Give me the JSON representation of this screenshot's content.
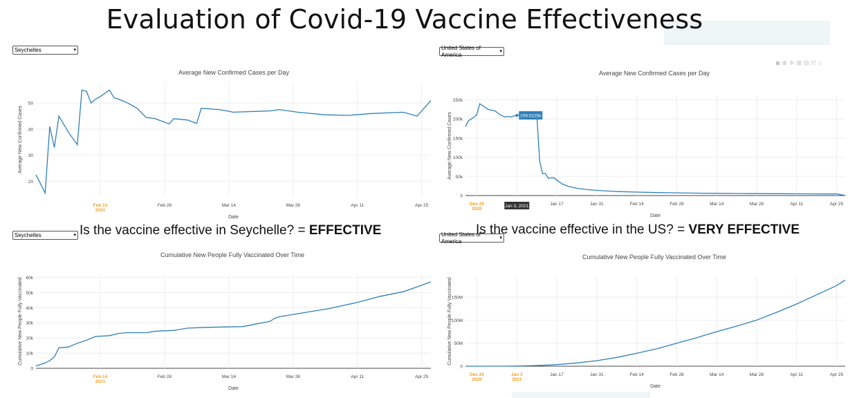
{
  "title": "Evaluation of Covid-19 Vaccine Effectiveness",
  "panels": {
    "top_left": {
      "selected_country": "Seychelles",
      "question_text": "Is the vaccine effective in Seychelle? = ",
      "answer": "EFFECTIVE"
    },
    "top_right": {
      "selected_country": "United States of America",
      "question_text": "Is the vaccine effective in the US? = ",
      "answer": "VERY EFFECTIVE",
      "tooltip_value": "209.5225k",
      "tooltip_date": "Jan 3, 2021"
    },
    "bottom_left": {
      "selected_country": "Seychelles"
    },
    "bottom_right": {
      "selected_country": "United States of America"
    }
  },
  "chart_data": [
    {
      "id": "sey_cases",
      "type": "line",
      "title": "Average New Confirmed Cases per Day",
      "xlabel": "Date",
      "ylabel": "Average New Confirmed Cases",
      "x_start": "2021-01-31",
      "x_end": "2021-04-27",
      "xlim": [
        "2021-01-31",
        "2021-04-27"
      ],
      "ylim": [
        14,
        58
      ],
      "yticks": [
        20,
        30,
        40,
        50
      ],
      "xticks": [
        {
          "date": "2021-02-14",
          "label": "Feb 14",
          "sub": "2021",
          "highlight": true
        },
        {
          "date": "2021-02-28",
          "label": "Feb 28"
        },
        {
          "date": "2021-03-14",
          "label": "Mar 14"
        },
        {
          "date": "2021-03-28",
          "label": "Mar 28"
        },
        {
          "date": "2021-04-11",
          "label": "Apr 11"
        },
        {
          "date": "2021-04-25",
          "label": "Apr 25"
        }
      ],
      "x": [
        "2021-01-31",
        "2021-02-02",
        "2021-02-03",
        "2021-02-04",
        "2021-02-05",
        "2021-02-07",
        "2021-02-09",
        "2021-02-10",
        "2021-02-11",
        "2021-02-12",
        "2021-02-13",
        "2021-02-14",
        "2021-02-16",
        "2021-02-17",
        "2021-02-18",
        "2021-02-20",
        "2021-02-22",
        "2021-02-24",
        "2021-02-26",
        "2021-03-01",
        "2021-03-02",
        "2021-03-05",
        "2021-03-07",
        "2021-03-08",
        "2021-03-12",
        "2021-03-15",
        "2021-03-23",
        "2021-03-25",
        "2021-03-29",
        "2021-04-04",
        "2021-04-09",
        "2021-04-14",
        "2021-04-21",
        "2021-04-24",
        "2021-04-27"
      ],
      "series": [
        {
          "values": [
            22.5,
            15.5,
            41,
            33,
            45,
            39,
            34,
            55,
            54.5,
            50,
            51.5,
            52.5,
            55,
            52,
            51.5,
            50,
            48,
            44.5,
            44,
            42,
            44,
            43.5,
            42.2,
            48,
            47.5,
            46.5,
            47,
            47.5,
            46.5,
            45.5,
            45.3,
            46,
            46.5,
            45,
            51
          ]
        }
      ]
    },
    {
      "id": "us_cases",
      "type": "line",
      "title": "Average New Confirmed Cases per Day",
      "xlabel": "Date",
      "ylabel": "Average New Confirmed Cases",
      "x_start": "2020-12-16",
      "x_end": "2021-04-28",
      "xlim": [
        "2020-12-16",
        "2021-04-28"
      ],
      "ylim": [
        0,
        260000
      ],
      "yticks": [
        {
          "v": 0,
          "t": "0"
        },
        {
          "v": 50000,
          "t": "50k"
        },
        {
          "v": 100000,
          "t": "100k"
        },
        {
          "v": 150000,
          "t": "150k"
        },
        {
          "v": 200000,
          "t": "200k"
        },
        {
          "v": 250000,
          "t": "250k"
        }
      ],
      "xticks": [
        {
          "date": "2020-12-20",
          "label": "Dec 20",
          "sub": "2020",
          "highlight": true
        },
        {
          "date": "2021-01-03",
          "label": "Jan 3, 2021",
          "box": true
        },
        {
          "date": "2021-01-17",
          "label": "Jan 17"
        },
        {
          "date": "2021-01-31",
          "label": "Jan 31"
        },
        {
          "date": "2021-02-14",
          "label": "Feb 14"
        },
        {
          "date": "2021-02-28",
          "label": "Feb 28"
        },
        {
          "date": "2021-03-14",
          "label": "Mar 14"
        },
        {
          "date": "2021-03-28",
          "label": "Mar 28"
        },
        {
          "date": "2021-04-11",
          "label": "Apr 11"
        },
        {
          "date": "2021-04-25",
          "label": "Apr 25"
        }
      ],
      "x": [
        "2020-12-16",
        "2020-12-17",
        "2020-12-18",
        "2020-12-19",
        "2020-12-20",
        "2020-12-21",
        "2020-12-22",
        "2020-12-23",
        "2020-12-24",
        "2020-12-25",
        "2020-12-26",
        "2020-12-27",
        "2020-12-28",
        "2020-12-29",
        "2020-12-30",
        "2020-12-31",
        "2021-01-01",
        "2021-01-02",
        "2021-01-03",
        "2021-01-04",
        "2021-01-05",
        "2021-01-06",
        "2021-01-07",
        "2021-01-08",
        "2021-01-09",
        "2021-01-10",
        "2021-01-11",
        "2021-01-12",
        "2021-01-13",
        "2021-01-14",
        "2021-01-15",
        "2021-01-16",
        "2021-01-17",
        "2021-01-19",
        "2021-01-21",
        "2021-01-24",
        "2021-01-27",
        "2021-01-31",
        "2021-02-07",
        "2021-02-14",
        "2021-02-21",
        "2021-02-28",
        "2021-03-07",
        "2021-03-14",
        "2021-03-21",
        "2021-03-28",
        "2021-04-04",
        "2021-04-11",
        "2021-04-18",
        "2021-04-25",
        "2021-04-26",
        "2021-04-27",
        "2021-04-28"
      ],
      "series": [
        {
          "values": [
            180000,
            195000,
            200000,
            205000,
            212000,
            240000,
            235000,
            230000,
            225000,
            223000,
            222000,
            218000,
            212000,
            208000,
            205000,
            207000,
            205000,
            208000,
            209522,
            211000,
            210000,
            208000,
            212000,
            210000,
            208000,
            209000,
            90000,
            57000,
            58000,
            45000,
            46000,
            46500,
            40000,
            30000,
            24000,
            19000,
            16000,
            13500,
            10500,
            9000,
            7800,
            7000,
            6300,
            5800,
            5400,
            5000,
            4800,
            4600,
            4400,
            4200,
            3000,
            1500,
            500
          ]
        }
      ]
    },
    {
      "id": "sey_vax",
      "type": "line",
      "title": "Cumulative New People Fully Vaccinated Over Time",
      "xlabel": "Date",
      "ylabel": "Cumulative New People Fully Vaccinated",
      "x_start": "2021-01-31",
      "x_end": "2021-04-27",
      "xlim": [
        "2021-01-31",
        "2021-04-27"
      ],
      "ylim": [
        0,
        62000
      ],
      "yticks": [
        {
          "v": 0,
          "t": "0"
        },
        {
          "v": 10000,
          "t": "10k"
        },
        {
          "v": 20000,
          "t": "20k"
        },
        {
          "v": 30000,
          "t": "30k"
        },
        {
          "v": 40000,
          "t": "40k"
        },
        {
          "v": 50000,
          "t": "50k"
        },
        {
          "v": 60000,
          "t": "60k"
        }
      ],
      "xticks": [
        {
          "date": "2021-02-14",
          "label": "Feb 14",
          "sub": "2021",
          "highlight": true
        },
        {
          "date": "2021-02-28",
          "label": "Feb 28"
        },
        {
          "date": "2021-03-14",
          "label": "Mar 14"
        },
        {
          "date": "2021-03-28",
          "label": "Mar 28"
        },
        {
          "date": "2021-04-11",
          "label": "Apr 11"
        },
        {
          "date": "2021-04-25",
          "label": "Apr 25"
        }
      ],
      "x": [
        "2021-01-31",
        "2021-02-02",
        "2021-02-03",
        "2021-02-04",
        "2021-02-05",
        "2021-02-07",
        "2021-02-09",
        "2021-02-11",
        "2021-02-13",
        "2021-02-16",
        "2021-02-18",
        "2021-02-20",
        "2021-02-24",
        "2021-02-26",
        "2021-03-02",
        "2021-03-05",
        "2021-03-09",
        "2021-03-17",
        "2021-03-23",
        "2021-03-24",
        "2021-03-25",
        "2021-03-28",
        "2021-04-05",
        "2021-04-11",
        "2021-04-16",
        "2021-04-21",
        "2021-04-27"
      ],
      "series": [
        {
          "values": [
            1500,
            3500,
            5000,
            7500,
            13500,
            14000,
            16500,
            18500,
            21000,
            21500,
            23000,
            23500,
            23500,
            24500,
            25000,
            26500,
            27000,
            27500,
            31000,
            33000,
            34000,
            35500,
            39500,
            43500,
            47500,
            50500,
            57000
          ]
        }
      ]
    },
    {
      "id": "us_vax",
      "type": "line",
      "title": "Cumulative New People Fully Vaccinated Over Time",
      "xlabel": "Date",
      "ylabel": "Cumulative New People Fully Vaccinated",
      "x_start": "2020-12-16",
      "x_end": "2021-04-28",
      "xlim": [
        "2020-12-16",
        "2021-04-28"
      ],
      "ylim": [
        0,
        195000000
      ],
      "yticks": [
        {
          "v": 0,
          "t": "0"
        },
        {
          "v": 50000000,
          "t": "50M"
        },
        {
          "v": 100000000,
          "t": "100M"
        },
        {
          "v": 150000000,
          "t": "150M"
        }
      ],
      "xticks": [
        {
          "date": "2020-12-20",
          "label": "Dec 20",
          "sub": "2020",
          "highlight": true
        },
        {
          "date": "2021-01-03",
          "label": "Jan 3",
          "sub": "2021",
          "highlight": true
        },
        {
          "date": "2021-01-17",
          "label": "Jan 17"
        },
        {
          "date": "2021-01-31",
          "label": "Jan 31"
        },
        {
          "date": "2021-02-14",
          "label": "Feb 14"
        },
        {
          "date": "2021-02-28",
          "label": "Feb 28"
        },
        {
          "date": "2021-03-14",
          "label": "Mar 14"
        },
        {
          "date": "2021-03-28",
          "label": "Mar 28"
        },
        {
          "date": "2021-04-11",
          "label": "Apr 11"
        },
        {
          "date": "2021-04-25",
          "label": "Apr 25"
        }
      ],
      "x": [
        "2020-12-16",
        "2020-12-30",
        "2021-01-04",
        "2021-01-10",
        "2021-01-17",
        "2021-01-24",
        "2021-01-31",
        "2021-02-07",
        "2021-02-14",
        "2021-02-21",
        "2021-02-28",
        "2021-03-07",
        "2021-03-14",
        "2021-03-21",
        "2021-03-28",
        "2021-04-04",
        "2021-04-11",
        "2021-04-18",
        "2021-04-25",
        "2021-04-28"
      ],
      "series": [
        {
          "values": [
            0,
            200000,
            500000,
            1500000,
            3500000,
            7000000,
            12000000,
            19000000,
            28000000,
            38000000,
            50000000,
            62000000,
            75000000,
            87000000,
            100000000,
            117000000,
            135000000,
            155000000,
            175000000,
            187000000
          ]
        }
      ]
    }
  ]
}
